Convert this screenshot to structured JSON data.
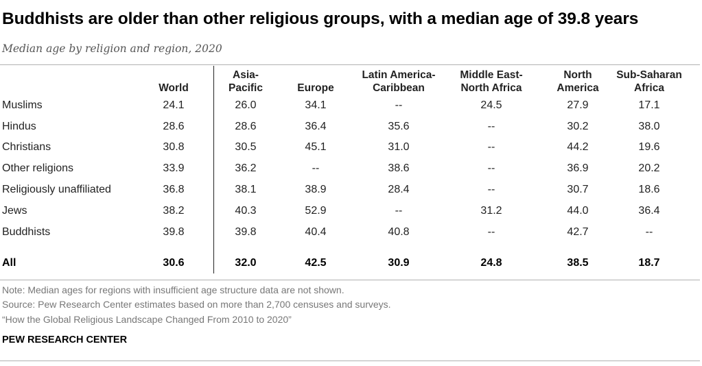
{
  "title": "Buddhists are older than other religious groups, with a median age of 39.8 years",
  "subtitle": "Median age by religion and region, 2020",
  "chart_data": {
    "type": "table",
    "columns": [
      {
        "line1": "",
        "line2": "World"
      },
      {
        "line1": "Asia-",
        "line2": "Pacific"
      },
      {
        "line1": "",
        "line2": "Europe"
      },
      {
        "line1": "Latin America-",
        "line2": "Caribbean"
      },
      {
        "line1": "Middle East-",
        "line2": "North Africa"
      },
      {
        "line1": "North",
        "line2": "America"
      },
      {
        "line1": "Sub-Saharan",
        "line2": "Africa"
      }
    ],
    "rows": [
      {
        "label": "Muslims",
        "values": [
          "24.1",
          "26.0",
          "34.1",
          "--",
          "24.5",
          "27.9",
          "17.1"
        ]
      },
      {
        "label": "Hindus",
        "values": [
          "28.6",
          "28.6",
          "36.4",
          "35.6",
          "--",
          "30.2",
          "38.0"
        ]
      },
      {
        "label": "Christians",
        "values": [
          "30.8",
          "30.5",
          "45.1",
          "31.0",
          "--",
          "44.2",
          "19.6"
        ]
      },
      {
        "label": "Other religions",
        "values": [
          "33.9",
          "36.2",
          "--",
          "38.6",
          "--",
          "36.9",
          "20.2"
        ]
      },
      {
        "label": "Religiously unaffiliated",
        "values": [
          "36.8",
          "38.1",
          "38.9",
          "28.4",
          "--",
          "30.7",
          "18.6"
        ]
      },
      {
        "label": "Jews",
        "values": [
          "38.2",
          "40.3",
          "52.9",
          "--",
          "31.2",
          "44.0",
          "36.4"
        ]
      },
      {
        "label": "Buddhists",
        "values": [
          "39.8",
          "39.8",
          "40.4",
          "40.8",
          "--",
          "42.7",
          "--"
        ]
      }
    ],
    "total_row": {
      "label": "All",
      "values": [
        "30.6",
        "32.0",
        "42.5",
        "30.9",
        "24.8",
        "38.5",
        "18.7"
      ]
    }
  },
  "notes": {
    "note": "Note: Median ages for regions with insufficient age structure data are not shown.",
    "source": "Source: Pew Research Center estimates based on more than 2,700 censuses and surveys.",
    "report": "“How the Global Religious Landscape Changed From 2010 to 2020”"
  },
  "brand": "PEW RESEARCH CENTER"
}
